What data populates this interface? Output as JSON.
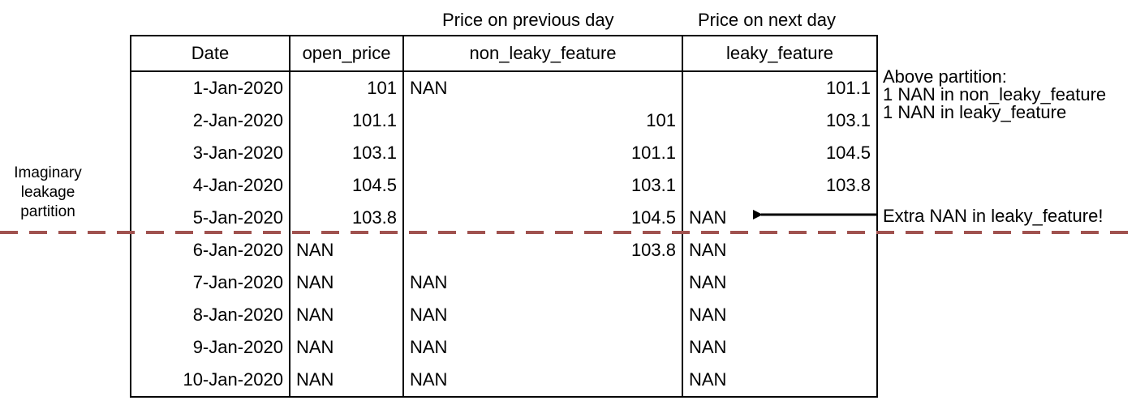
{
  "header_captions": {
    "previous_day": "Price on previous day",
    "next_day": "Price on next day"
  },
  "table": {
    "columns": [
      "Date",
      "open_price",
      "non_leaky_feature",
      "leaky_feature"
    ],
    "rows": [
      {
        "date": "1-Jan-2020",
        "open_price": "101",
        "non_leaky_feature": "NAN",
        "leaky_feature": "101.1"
      },
      {
        "date": "2-Jan-2020",
        "open_price": "101.1",
        "non_leaky_feature": "101",
        "leaky_feature": "103.1"
      },
      {
        "date": "3-Jan-2020",
        "open_price": "103.1",
        "non_leaky_feature": "101.1",
        "leaky_feature": "104.5"
      },
      {
        "date": "4-Jan-2020",
        "open_price": "104.5",
        "non_leaky_feature": "103.1",
        "leaky_feature": "103.8"
      },
      {
        "date": "5-Jan-2020",
        "open_price": "103.8",
        "non_leaky_feature": "104.5",
        "leaky_feature": "NAN"
      },
      {
        "date": "6-Jan-2020",
        "open_price": "NAN",
        "non_leaky_feature": "103.8",
        "leaky_feature": "NAN"
      },
      {
        "date": "7-Jan-2020",
        "open_price": "NAN",
        "non_leaky_feature": "NAN",
        "leaky_feature": "NAN"
      },
      {
        "date": "8-Jan-2020",
        "open_price": "NAN",
        "non_leaky_feature": "NAN",
        "leaky_feature": "NAN"
      },
      {
        "date": "9-Jan-2020",
        "open_price": "NAN",
        "non_leaky_feature": "NAN",
        "leaky_feature": "NAN"
      },
      {
        "date": "10-Jan-2020",
        "open_price": "NAN",
        "non_leaky_feature": "NAN",
        "leaky_feature": "NAN"
      }
    ]
  },
  "partition_label": [
    "Imaginary",
    "leakage",
    "partition"
  ],
  "notes": {
    "above_partition": [
      "Above partition:",
      "1 NAN in non_leaky_feature",
      "1 NAN in leaky_feature"
    ],
    "extra_nan": "Extra NAN in leaky_feature!"
  },
  "colors": {
    "partition_line": "#a0524f",
    "text": "#000000"
  }
}
